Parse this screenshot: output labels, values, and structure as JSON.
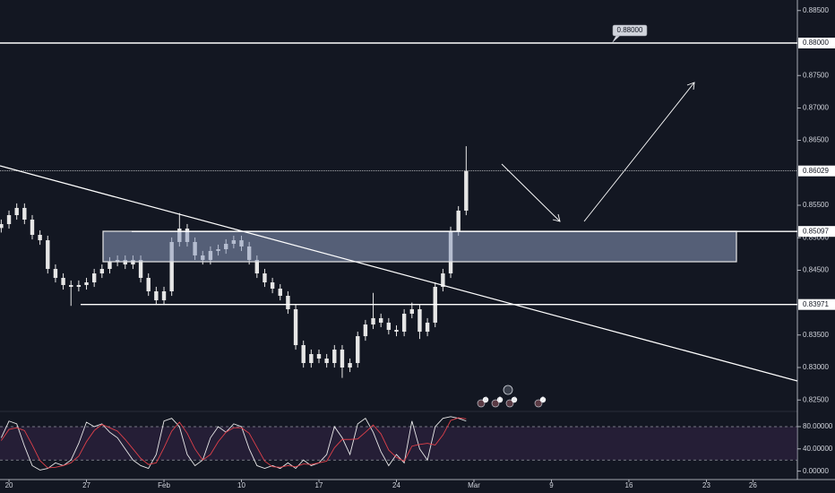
{
  "chart_data": {
    "type": "candlestick",
    "color": "#e6e6e6",
    "x": [
      -0.5,
      0,
      0.5,
      1,
      1.5,
      2,
      2.5,
      3,
      3.5,
      4,
      4.5,
      5,
      5.5,
      6,
      6.5,
      7,
      7.5,
      8,
      8.5,
      9,
      9.5,
      10,
      10.5,
      11,
      11.5,
      12,
      12.5,
      13,
      13.5,
      14,
      14.5,
      15,
      15.5,
      16,
      16.5,
      17,
      17.5,
      18,
      18.5,
      19,
      19.5,
      20,
      20.5,
      21,
      21.5,
      22,
      22.5,
      23,
      23.5,
      24,
      24.5,
      25,
      25.5,
      26,
      26.5,
      27,
      27.5,
      28,
      28.5,
      29,
      29.5
    ],
    "open": [
      0.8515,
      0.8521,
      0.85348,
      0.85459,
      0.85279,
      0.85044,
      0.84961,
      0.84519,
      0.84381,
      0.84271,
      0.84243,
      0.84271,
      0.84312,
      0.8445,
      0.84519,
      0.8463,
      0.84657,
      0.84588,
      0.84657,
      0.84381,
      0.84174,
      0.84036,
      0.84174,
      0.84934,
      0.85141,
      0.84934,
      0.84727,
      0.84657,
      0.84796,
      0.84823,
      0.84906,
      0.84961,
      0.84865,
      0.84657,
      0.8445,
      0.84312,
      0.84215,
      0.84105,
      0.83898,
      0.83345,
      0.83069,
      0.83207,
      0.83138,
      0.83069,
      0.83276,
      0.83,
      0.83069,
      0.83483,
      0.83663,
      0.8376,
      0.83691,
      0.8358,
      0.83552,
      0.83829,
      0.83898,
      0.83552,
      0.83691,
      0.84243,
      0.8445,
      0.851,
      0.85417
    ],
    "high": [
      0.8528,
      0.85418,
      0.85529,
      0.85529,
      0.85349,
      0.85114,
      0.85031,
      0.84589,
      0.84451,
      0.84341,
      0.84341,
      0.84382,
      0.8452,
      0.84589,
      0.847,
      0.84727,
      0.84727,
      0.84727,
      0.84727,
      0.84451,
      0.84244,
      0.84244,
      0.85004,
      0.8538,
      0.85211,
      0.85004,
      0.84797,
      0.84866,
      0.84893,
      0.84976,
      0.85031,
      0.85031,
      0.84935,
      0.84727,
      0.8452,
      0.84382,
      0.84285,
      0.84175,
      0.83968,
      0.83415,
      0.83277,
      0.83277,
      0.83208,
      0.83346,
      0.83346,
      0.83139,
      0.83553,
      0.83733,
      0.8415,
      0.8383,
      0.83761,
      0.8365,
      0.83899,
      0.84,
      0.83968,
      0.83761,
      0.84313,
      0.8452,
      0.8517,
      0.85487,
      0.8641
    ],
    "low": [
      0.8508,
      0.8514,
      0.85278,
      0.85209,
      0.84974,
      0.84891,
      0.84449,
      0.84311,
      0.84201,
      0.8395,
      0.84173,
      0.84201,
      0.84242,
      0.8438,
      0.84449,
      0.8456,
      0.84518,
      0.84518,
      0.84311,
      0.84104,
      0.83966,
      0.83966,
      0.84104,
      0.84864,
      0.84864,
      0.84657,
      0.84587,
      0.84587,
      0.84726,
      0.84753,
      0.84836,
      0.84795,
      0.84587,
      0.8438,
      0.84242,
      0.84145,
      0.84035,
      0.83828,
      0.83275,
      0.82999,
      0.82999,
      0.83068,
      0.82999,
      0.82999,
      0.8284,
      0.8293,
      0.82999,
      0.83413,
      0.83593,
      0.83621,
      0.8351,
      0.83482,
      0.83482,
      0.83759,
      0.8344,
      0.83482,
      0.83621,
      0.84173,
      0.8438,
      0.8503,
      0.85347
    ],
    "close": [
      0.8521,
      0.85348,
      0.85459,
      0.85279,
      0.85044,
      0.84961,
      0.84519,
      0.84381,
      0.84271,
      0.84243,
      0.84271,
      0.84312,
      0.8445,
      0.84519,
      0.8463,
      0.84657,
      0.84588,
      0.84657,
      0.84381,
      0.84174,
      0.84036,
      0.84174,
      0.84934,
      0.85141,
      0.84934,
      0.84727,
      0.84657,
      0.84796,
      0.84823,
      0.84906,
      0.84961,
      0.84865,
      0.84657,
      0.8445,
      0.84312,
      0.84215,
      0.84105,
      0.83898,
      0.83345,
      0.83069,
      0.83207,
      0.83138,
      0.83069,
      0.83276,
      0.83,
      0.83069,
      0.83483,
      0.83663,
      0.8376,
      0.83691,
      0.8358,
      0.83552,
      0.83829,
      0.83898,
      0.83552,
      0.83691,
      0.84243,
      0.8445,
      0.851,
      0.85417,
      0.86029
    ],
    "xlim": [
      -0.58,
      50.87
    ],
    "xticks": [
      {
        "value": 0,
        "label": "20"
      },
      {
        "value": 5,
        "label": "27"
      },
      {
        "value": 10,
        "label": "Feb"
      },
      {
        "value": 15,
        "label": "10"
      },
      {
        "value": 20,
        "label": "17"
      },
      {
        "value": 25,
        "label": "24"
      },
      {
        "value": 30,
        "label": "Mar"
      },
      {
        "value": 35,
        "label": "9"
      },
      {
        "value": 40,
        "label": "16"
      },
      {
        "value": 45,
        "label": "23"
      },
      {
        "value": 48,
        "label": "26"
      }
    ],
    "ylim": [
      0.82337,
      0.88663
    ],
    "yticks": [
      {
        "value": 0.885,
        "label": "0.88500"
      },
      {
        "value": 0.875,
        "label": "0.87500"
      },
      {
        "value": 0.87,
        "label": "0.87000"
      },
      {
        "value": 0.865,
        "label": "0.86500"
      },
      {
        "value": 0.855,
        "label": "0.85500"
      },
      {
        "value": 0.85,
        "label": "0.85000"
      },
      {
        "value": 0.845,
        "label": "0.84500"
      },
      {
        "value": 0.835,
        "label": "0.83500"
      },
      {
        "value": 0.83,
        "label": "0.83000"
      },
      {
        "value": 0.825,
        "label": "0.82500"
      }
    ],
    "price_lines": [
      {
        "value": 0.88,
        "label": "0.88000",
        "style": "solid"
      },
      {
        "value": 0.86029,
        "label": "0.86029",
        "style": "dotted"
      },
      {
        "value": 0.85097,
        "label": "0.85097",
        "style": "solid"
      },
      {
        "value": 0.83971,
        "label": "0.83971",
        "style": "solid"
      }
    ],
    "events": [
      4,
      0,
      4,
      2
    ],
    "oscillator": {
      "type": "line",
      "ylim": [
        -15,
        105.7
      ],
      "yticks": [
        {
          "value": 80,
          "label": "80.00000"
        },
        {
          "value": 40,
          "label": "40.00000"
        },
        {
          "value": 0,
          "label": "0.00000"
        }
      ],
      "bands": [
        20,
        80
      ],
      "series": [
        {
          "color": "#e8e8e8",
          "values": [
            60,
            90,
            85,
            45,
            10,
            2,
            5,
            15,
            10,
            20,
            50,
            88,
            80,
            85,
            70,
            60,
            40,
            20,
            10,
            5,
            30,
            90,
            95,
            80,
            30,
            10,
            20,
            60,
            80,
            70,
            85,
            80,
            40,
            10,
            5,
            10,
            5,
            15,
            5,
            20,
            10,
            15,
            30,
            80,
            60,
            30,
            85,
            95,
            70,
            35,
            10,
            30,
            15,
            90,
            40,
            20,
            80,
            95,
            98,
            95,
            90
          ]
        },
        {
          "color": "#e0404a",
          "values": [
            55,
            75,
            78,
            73,
            47,
            19,
            6,
            7,
            10,
            15,
            27,
            53,
            73,
            84,
            78,
            72,
            57,
            40,
            23,
            12,
            15,
            42,
            72,
            88,
            68,
            40,
            20,
            30,
            53,
            70,
            78,
            78,
            68,
            43,
            18,
            8,
            7,
            10,
            8,
            13,
            12,
            15,
            18,
            42,
            57,
            57,
            58,
            70,
            83,
            67,
            38,
            25,
            18,
            45,
            48,
            50,
            47,
            65,
            91,
            96,
            94
          ]
        }
      ]
    }
  }
}
